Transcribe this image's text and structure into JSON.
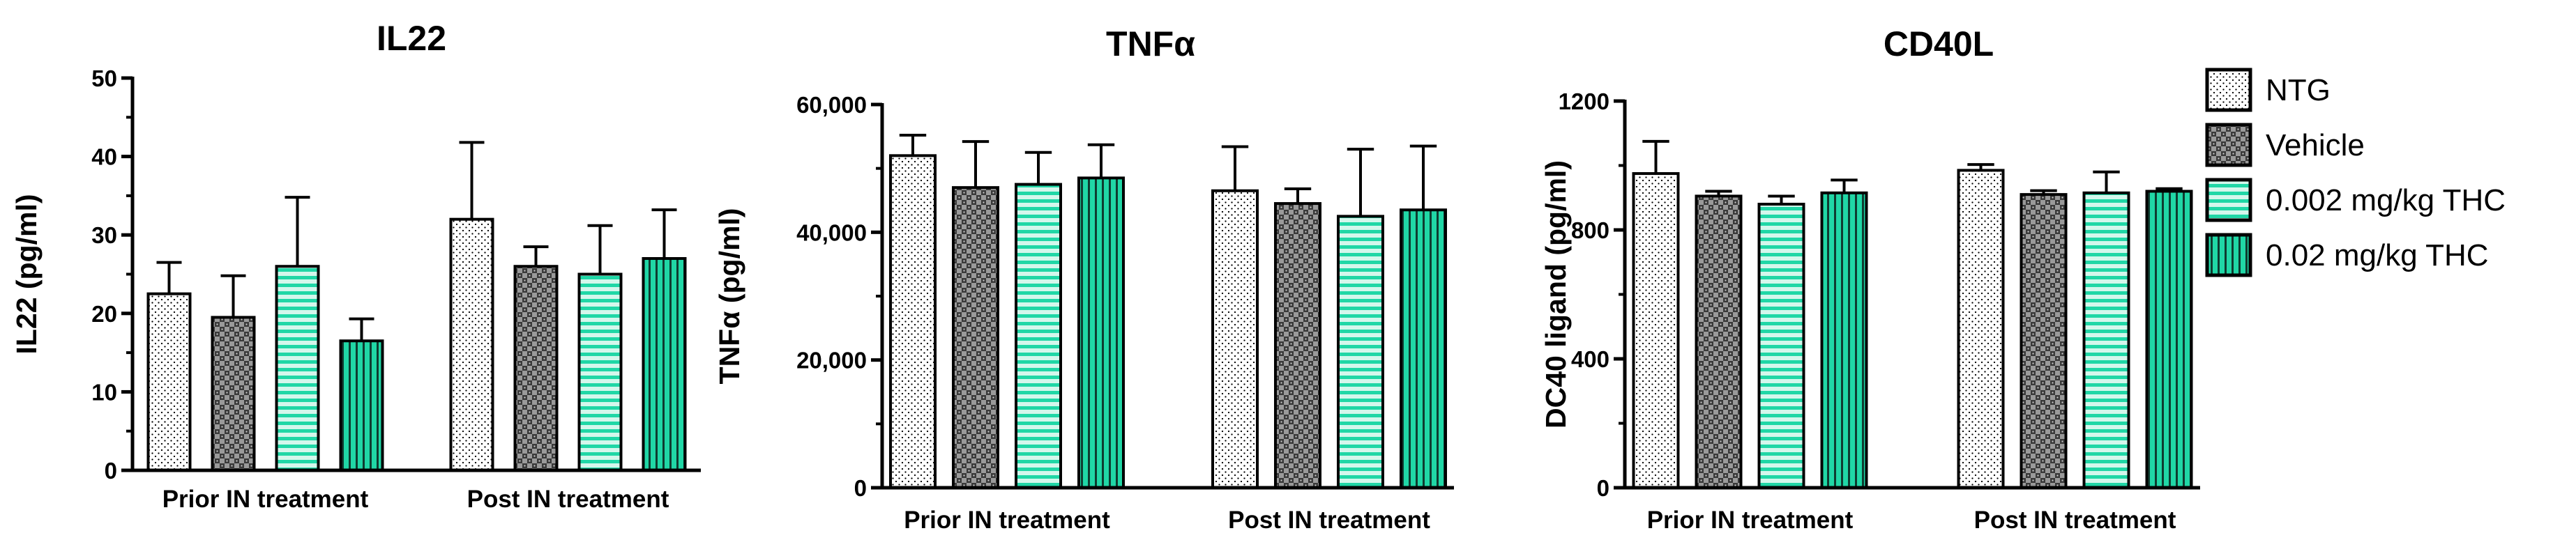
{
  "figure": {
    "legend": {
      "placement": "right",
      "entries": [
        {
          "label": "NTG",
          "pattern": "pat-dots"
        },
        {
          "label": "Vehicle",
          "pattern": "pat-checker"
        },
        {
          "label": "0.002 mg/kg THC",
          "pattern": "pat-hstripes"
        },
        {
          "label": "0.02 mg/kg THC",
          "pattern": "pat-vstripes"
        }
      ]
    },
    "colors": {
      "axis": "#000000",
      "bar_outline": "#000000",
      "dots_fill": "#ffffff",
      "checker_dark": "#3a3a3a",
      "checker_light": "#9a9a9a",
      "stripe_color": "#20d7a6",
      "stripe_background": "#d4f7ec"
    }
  },
  "chart_data": [
    {
      "type": "bar",
      "title": "IL22",
      "ylabel": "IL22 (pg/ml)",
      "xlabel": "",
      "ylim": [
        0,
        50
      ],
      "yticks": [
        0,
        10,
        20,
        30,
        40,
        50
      ],
      "ytick_labels": [
        "0",
        "10",
        "20",
        "30",
        "40",
        "50"
      ],
      "categories": [
        "Prior IN treatment",
        "Post IN treatment"
      ],
      "series": [
        {
          "name": "NTG",
          "values": [
            22.5,
            32
          ],
          "errors": [
            4,
            9.8
          ]
        },
        {
          "name": "Vehicle",
          "values": [
            19.5,
            26
          ],
          "errors": [
            5.3,
            2.5
          ]
        },
        {
          "name": "0.002 mg/kg THC",
          "values": [
            26,
            25
          ],
          "errors": [
            8.8,
            6.2
          ]
        },
        {
          "name": "0.02 mg/kg THC",
          "values": [
            16.5,
            27
          ],
          "errors": [
            2.8,
            6.2
          ]
        }
      ]
    },
    {
      "type": "bar",
      "title": "TNFα",
      "ylabel": "TNFα (pg/ml)",
      "xlabel": "",
      "ylim": [
        0,
        60000
      ],
      "yticks": [
        0,
        20000,
        40000,
        60000
      ],
      "ytick_labels": [
        "0",
        "20,000",
        "40,000",
        "60,000"
      ],
      "categories": [
        "Prior IN treatment",
        "Post IN treatment"
      ],
      "series": [
        {
          "name": "NTG",
          "values": [
            52000,
            46500
          ],
          "errors": [
            3200,
            6900
          ]
        },
        {
          "name": "Vehicle",
          "values": [
            47000,
            44500
          ],
          "errors": [
            7200,
            2300
          ]
        },
        {
          "name": "0.002 mg/kg THC",
          "values": [
            47500,
            42500
          ],
          "errors": [
            5000,
            10500
          ]
        },
        {
          "name": "0.02 mg/kg THC",
          "values": [
            48500,
            43500
          ],
          "errors": [
            5200,
            10000
          ]
        }
      ]
    },
    {
      "type": "bar",
      "title": "CD40L",
      "ylabel": "DC40 ligand (pg/ml)",
      "xlabel": "",
      "ylim": [
        0,
        1200
      ],
      "yticks": [
        0,
        400,
        800,
        1200
      ],
      "ytick_labels": [
        "0",
        "400",
        "800",
        "1200"
      ],
      "categories": [
        "Prior IN treatment",
        "Post IN treatment"
      ],
      "series": [
        {
          "name": "NTG",
          "values": [
            975,
            985
          ],
          "errors": [
            100,
            18
          ]
        },
        {
          "name": "Vehicle",
          "values": [
            905,
            910
          ],
          "errors": [
            15,
            12
          ]
        },
        {
          "name": "0.002 mg/kg THC",
          "values": [
            880,
            915
          ],
          "errors": [
            25,
            65
          ]
        },
        {
          "name": "0.02 mg/kg THC",
          "values": [
            915,
            920
          ],
          "errors": [
            40,
            8
          ]
        }
      ]
    }
  ]
}
